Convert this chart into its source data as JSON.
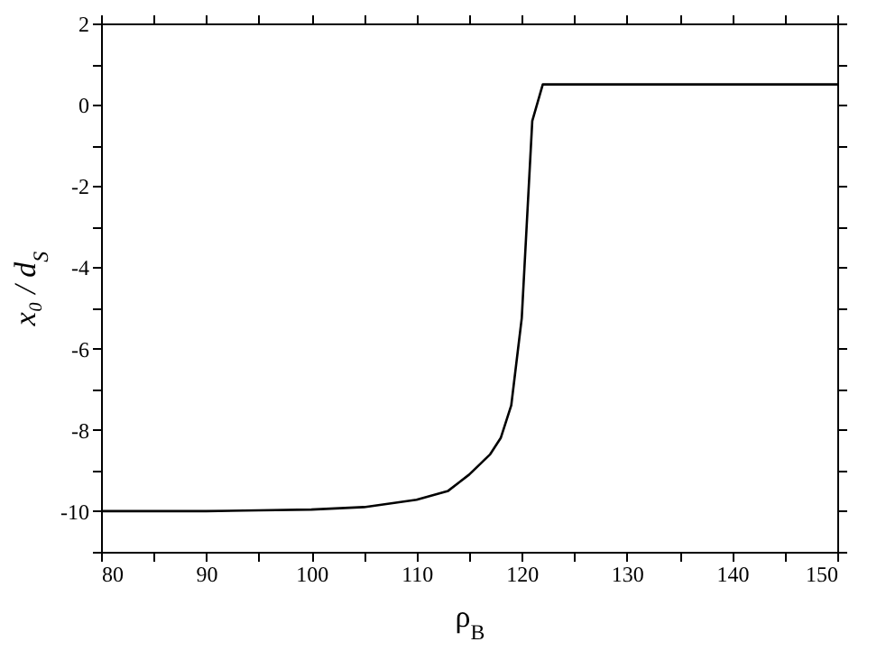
{
  "chart_data": {
    "type": "line",
    "xlabel": "ρ$_{B}$",
    "ylabel": "x₀ / d$_{S}$",
    "x": [
      80,
      90,
      95,
      100,
      105,
      110,
      113,
      115,
      116,
      117,
      118,
      119,
      120,
      121,
      122,
      150
    ],
    "series": [
      {
        "color": "#000000",
        "values": [
          -10,
          -10,
          -9.98,
          -9.96,
          -9.9,
          -9.72,
          -9.5,
          -9.1,
          -8.85,
          -8.6,
          -8.2,
          -7.4,
          -5.25,
          -0.4,
          0.5,
          0.5
        ]
      }
    ],
    "xlim": [
      80,
      150
    ],
    "xticks": [
      80,
      {
        "value": 85,
        "label": null
      },
      90,
      {
        "value": 95,
        "label": null
      },
      100,
      {
        "value": 105,
        "label": null
      },
      110,
      {
        "value": 115,
        "label": null
      },
      120,
      {
        "value": 125,
        "label": null
      },
      130,
      {
        "value": 135,
        "label": null
      },
      140,
      {
        "value": 145,
        "label": null
      },
      150
    ],
    "ylim": [
      -11,
      2
    ],
    "yticks": [
      {
        "value": -11,
        "label": null
      },
      -10,
      {
        "value": -9,
        "label": null
      },
      -8,
      {
        "value": -7,
        "label": null
      },
      -6,
      {
        "value": -5,
        "label": null
      },
      -4,
      {
        "value": -3,
        "label": null
      },
      -2,
      {
        "value": -1,
        "label": null
      },
      0,
      {
        "value": 1,
        "label": null
      },
      2
    ],
    "grid": false,
    "marker": "none",
    "line_style": "solid"
  }
}
